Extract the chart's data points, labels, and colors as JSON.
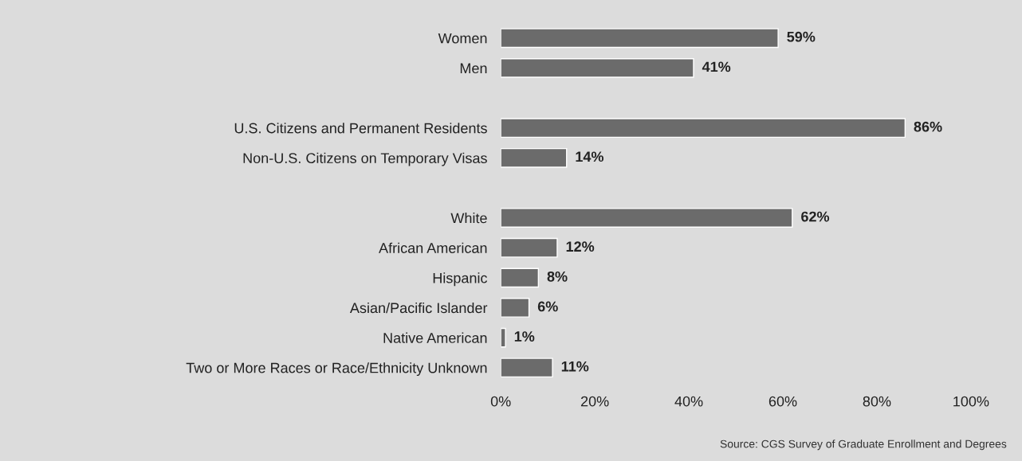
{
  "chart_data": {
    "type": "bar",
    "orientation": "horizontal",
    "categories": [
      "Women",
      "Men",
      null,
      "U.S. Citizens and Permanent Residents",
      "Non-U.S. Citizens on Temporary Visas",
      null,
      "White",
      "African American",
      "Hispanic",
      "Asian/Pacific Islander",
      "Native American",
      "Two or More Races or Race/Ethnicity Unknown"
    ],
    "values": [
      59,
      41,
      null,
      86,
      14,
      null,
      62,
      12,
      8,
      6,
      1,
      11
    ],
    "value_labels": [
      "59%",
      "41%",
      null,
      "86%",
      "14%",
      null,
      "62%",
      "12%",
      "8%",
      "6%",
      "1%",
      "11%"
    ],
    "color": "#6b6b6b",
    "xlim": [
      0,
      100
    ],
    "xticks": [
      {
        "value": 0,
        "label": "0%"
      },
      {
        "value": 20,
        "label": "20%"
      },
      {
        "value": 40,
        "label": "40%"
      },
      {
        "value": 60,
        "label": "60%"
      },
      {
        "value": 80,
        "label": "80%"
      },
      {
        "value": 100,
        "label": "100%"
      }
    ],
    "grid": false,
    "legend": false,
    "annotations": [
      "Source: CGS Survey of Graduate Enrollment and Degrees"
    ]
  }
}
